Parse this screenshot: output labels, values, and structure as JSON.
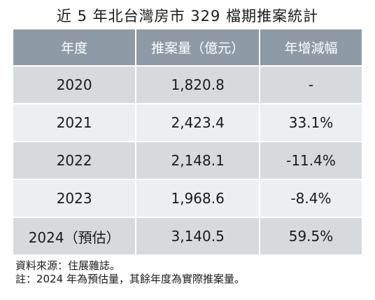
{
  "title": "近 5 年北台灣房市 329 檔期推案統計",
  "table": {
    "headers": [
      "年度",
      "推案量（億元）",
      "年增減幅"
    ],
    "rows": [
      {
        "year": "2020",
        "cases": "1,820.8",
        "change": "-"
      },
      {
        "year": "2021",
        "cases": "2,423.4",
        "change": "33.1%"
      },
      {
        "year": "2022",
        "cases": "2,148.1",
        "change": "-11.4%"
      },
      {
        "year": "2023",
        "cases": "1,968.6",
        "change": "-8.4%"
      },
      {
        "year": "2024（預估）",
        "cases": "3,140.5",
        "change": "59.5%"
      }
    ]
  },
  "colors": {
    "header_bg": "#8e9aa5",
    "row_dark": "#d6dadd",
    "row_light": "#eceeef"
  },
  "notes": {
    "source": "資料來源：住展雜誌。",
    "remark": "註：2024 年為預估量，其餘年度為實際推案量。"
  }
}
